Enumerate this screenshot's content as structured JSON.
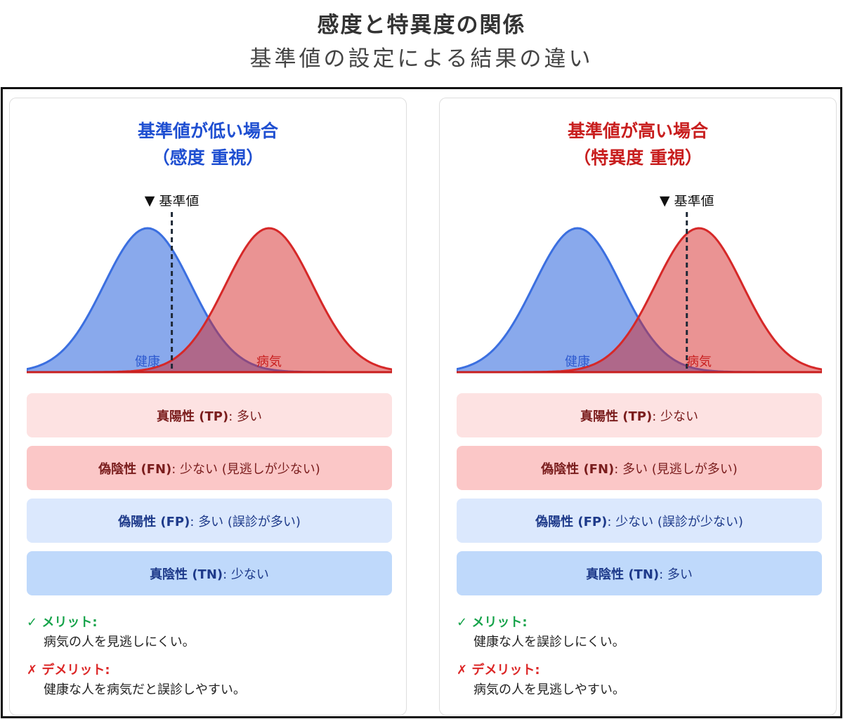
{
  "header": {
    "title": "感度と特異度の関係",
    "subtitle": "基準値の設定による結果の違い"
  },
  "colors": {
    "healthy": "#3b6fe0",
    "disease": "#d62828"
  },
  "panels": [
    {
      "title_line1": "基準値が低い場合",
      "title_line2": "（感度 重視）",
      "threshold_label": "▼ 基準値",
      "healthy_label": "健康",
      "disease_label": "病気",
      "threshold_position": 0.4,
      "results": [
        {
          "label": "真陽性 (TP)",
          "value": ": 多い"
        },
        {
          "label": "偽陰性 (FN)",
          "value": ": 少ない (見逃しが少ない)"
        },
        {
          "label": "偽陽性 (FP)",
          "value": ": 多い (誤診が多い)"
        },
        {
          "label": "真陰性 (TN)",
          "value": ": 少ない"
        }
      ],
      "merit_head": "✓ メリット:",
      "merit_text": "病気の人を見逃しにくい。",
      "demerit_head": "✗ デメリット:",
      "demerit_text": "健康な人を病気だと誤診しやすい。"
    },
    {
      "title_line1": "基準値が高い場合",
      "title_line2": "（特異度 重視）",
      "threshold_label": "▼ 基準値",
      "healthy_label": "健康",
      "disease_label": "病気",
      "threshold_position": 0.6,
      "results": [
        {
          "label": "真陽性 (TP)",
          "value": ": 少ない"
        },
        {
          "label": "偽陰性 (FN)",
          "value": ": 多い (見逃しが多い)"
        },
        {
          "label": "偽陽性 (FP)",
          "value": ": 少ない (誤診が少ない)"
        },
        {
          "label": "真陰性 (TN)",
          "value": ": 多い"
        }
      ],
      "merit_head": "✓ メリット:",
      "merit_text": "健康な人を誤診しにくい。",
      "demerit_head": "✗ デメリット:",
      "demerit_text": "病気の人を見逃しやすい。"
    }
  ]
}
